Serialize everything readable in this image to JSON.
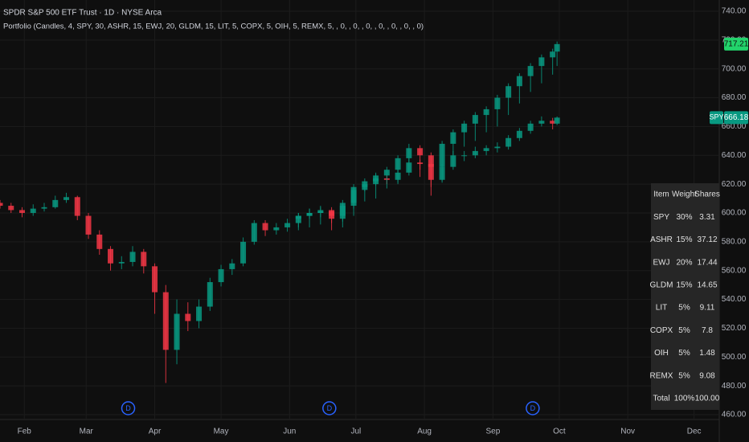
{
  "chart_data": {
    "type": "candlestick",
    "title": "SPDR S&P 500 ETF Trust · 1D · NYSE Arca",
    "subtitle": "Portfolio (Candles, 4, SPY, 30, ASHR, 15, EWJ, 20, GLDM, 15, LIT, 5, COPX, 5, OIH, 5, REMX, 5, , 0, , 0, , 0, , 0, , 0, , 0, , 0)",
    "xlim": [
      21,
      335
    ],
    "xticks": [
      {
        "value": 32,
        "label": "Feb"
      },
      {
        "value": 60,
        "label": "Mar"
      },
      {
        "value": 91,
        "label": "Apr"
      },
      {
        "value": 121,
        "label": "May"
      },
      {
        "value": 152,
        "label": "Jun"
      },
      {
        "value": 182,
        "label": "Jul"
      },
      {
        "value": 213,
        "label": "Aug"
      },
      {
        "value": 244,
        "label": "Sep"
      },
      {
        "value": 274,
        "label": "Oct"
      },
      {
        "value": 305,
        "label": "Nov"
      },
      {
        "value": 335,
        "label": "Dec"
      }
    ],
    "ylim": [
      460,
      740
    ],
    "yticks": [
      {
        "value": 460,
        "label": "460.00"
      },
      {
        "value": 480,
        "label": "480.00"
      },
      {
        "value": 500,
        "label": "500.00"
      },
      {
        "value": 520,
        "label": "520.00"
      },
      {
        "value": 540,
        "label": "540.00"
      },
      {
        "value": 560,
        "label": "560.00"
      },
      {
        "value": 580,
        "label": "580.00"
      },
      {
        "value": 600,
        "label": "600.00"
      },
      {
        "value": 620,
        "label": "620.00"
      },
      {
        "value": 640,
        "label": "640.00"
      },
      {
        "value": 660,
        "label": "660.00"
      },
      {
        "value": 680,
        "label": "680.00"
      },
      {
        "value": 700,
        "label": "700.00"
      },
      {
        "value": 720,
        "label": "720.00"
      },
      {
        "value": 740,
        "label": "740.00"
      }
    ],
    "grid": true,
    "series": [
      {
        "name": "SPY",
        "up_color": "#089981",
        "down_color": "#f23645",
        "label_color": "#089981",
        "candles": [
          [
            21,
            607,
            609,
            603,
            605
          ],
          [
            26,
            605,
            607,
            600,
            602
          ],
          [
            31,
            602,
            604,
            597,
            600
          ],
          [
            36,
            600,
            606,
            598,
            603
          ],
          [
            41,
            603,
            607,
            601,
            604
          ],
          [
            46,
            604,
            612,
            603,
            609
          ],
          [
            51,
            609,
            614,
            607,
            611
          ],
          [
            56,
            611,
            612,
            595,
            598
          ],
          [
            61,
            598,
            600,
            582,
            585
          ],
          [
            66,
            585,
            588,
            571,
            575
          ],
          [
            71,
            575,
            577,
            560,
            565
          ],
          [
            76,
            565,
            570,
            561,
            566
          ],
          [
            81,
            566,
            577,
            563,
            573
          ],
          [
            86,
            573,
            575,
            558,
            563
          ],
          [
            91,
            563,
            565,
            530,
            545
          ],
          [
            96,
            545,
            550,
            482,
            505
          ],
          [
            101,
            505,
            540,
            495,
            530
          ],
          [
            106,
            530,
            538,
            518,
            525
          ],
          [
            111,
            525,
            540,
            520,
            535
          ],
          [
            116,
            535,
            555,
            532,
            552
          ],
          [
            121,
            552,
            564,
            549,
            561
          ],
          [
            126,
            561,
            568,
            557,
            565
          ],
          [
            131,
            565,
            583,
            563,
            580
          ],
          [
            136,
            580,
            595,
            578,
            593
          ],
          [
            141,
            593,
            595,
            584,
            588
          ],
          [
            146,
            588,
            593,
            585,
            590
          ],
          [
            151,
            590,
            596,
            587,
            593
          ],
          [
            156,
            593,
            600,
            590,
            598
          ],
          [
            161,
            598,
            603,
            596,
            600
          ],
          [
            166,
            600,
            604,
            597,
            601
          ],
          [
            171,
            601,
            602,
            593,
            596
          ],
          [
            176,
            596,
            607,
            594,
            605
          ],
          [
            181,
            605,
            620,
            603,
            618
          ],
          [
            186,
            618,
            624,
            615,
            622
          ],
          [
            191,
            622,
            627,
            619,
            624
          ],
          [
            196,
            624,
            626,
            620,
            623
          ],
          [
            201,
            623,
            630,
            621,
            628
          ],
          [
            206,
            628,
            638,
            626,
            635
          ],
          [
            211,
            635,
            637,
            630,
            634
          ],
          [
            216,
            634,
            635,
            618,
            623
          ],
          [
            221,
            623,
            634,
            621,
            632
          ],
          [
            226,
            632,
            643,
            630,
            640
          ],
          [
            231,
            640,
            643,
            636,
            640
          ],
          [
            236,
            640,
            646,
            638,
            643
          ],
          [
            241,
            643,
            647,
            640,
            645
          ],
          [
            246,
            645,
            649,
            642,
            646
          ],
          [
            251,
            646,
            654,
            644,
            652
          ],
          [
            256,
            652,
            659,
            650,
            657
          ],
          [
            261,
            657,
            664,
            655,
            662
          ],
          [
            266,
            662,
            667,
            660,
            664
          ],
          [
            271,
            664,
            666,
            658,
            662
          ],
          [
            273,
            662,
            667,
            661,
            666.18
          ]
        ]
      },
      {
        "up_color": "#089981",
        "down_color": "#f23645",
        "label_color": "#22d36b",
        "candles": [
          [
            156,
            596,
            600,
            588,
            598
          ],
          [
            161,
            598,
            603,
            590,
            600
          ],
          [
            166,
            600,
            605,
            592,
            602
          ],
          [
            171,
            602,
            604,
            588,
            598
          ],
          [
            176,
            598,
            609,
            590,
            607
          ],
          [
            181,
            607,
            618,
            598,
            616
          ],
          [
            186,
            616,
            622,
            608,
            620
          ],
          [
            191,
            620,
            628,
            610,
            626
          ],
          [
            196,
            626,
            632,
            617,
            630
          ],
          [
            201,
            630,
            640,
            620,
            638
          ],
          [
            206,
            638,
            648,
            630,
            645
          ],
          [
            211,
            645,
            647,
            625,
            640
          ],
          [
            216,
            640,
            642,
            612,
            632
          ],
          [
            221,
            632,
            650,
            622,
            648
          ],
          [
            226,
            648,
            658,
            640,
            656
          ],
          [
            231,
            656,
            664,
            646,
            662
          ],
          [
            236,
            662,
            670,
            650,
            668
          ],
          [
            241,
            668,
            674,
            656,
            672
          ],
          [
            246,
            672,
            682,
            660,
            680
          ],
          [
            251,
            680,
            690,
            668,
            688
          ],
          [
            256,
            688,
            697,
            676,
            695
          ],
          [
            261,
            695,
            704,
            684,
            702
          ],
          [
            266,
            702,
            710,
            690,
            708
          ],
          [
            271,
            708,
            714,
            696,
            712
          ],
          [
            273,
            712,
            719,
            702,
            717.21
          ]
        ]
      }
    ],
    "events": {
      "x": [
        79,
        170,
        262
      ],
      "label": "D"
    },
    "table": {
      "header": [
        "Item",
        "Weight",
        "Shares"
      ],
      "rows": [
        [
          "SPY",
          "30%",
          "3.31"
        ],
        [
          "ASHR",
          "15%",
          "37.12"
        ],
        [
          "EWJ",
          "20%",
          "17.44"
        ],
        [
          "GLDM",
          "15%",
          "14.65"
        ],
        [
          "LIT",
          "5%",
          "9.11"
        ],
        [
          "COPX",
          "5%",
          "7.8"
        ],
        [
          "OIH",
          "5%",
          "1.48"
        ],
        [
          "REMX",
          "5%",
          "9.08"
        ],
        [
          "Total",
          "100%",
          "100.00"
        ]
      ]
    }
  }
}
